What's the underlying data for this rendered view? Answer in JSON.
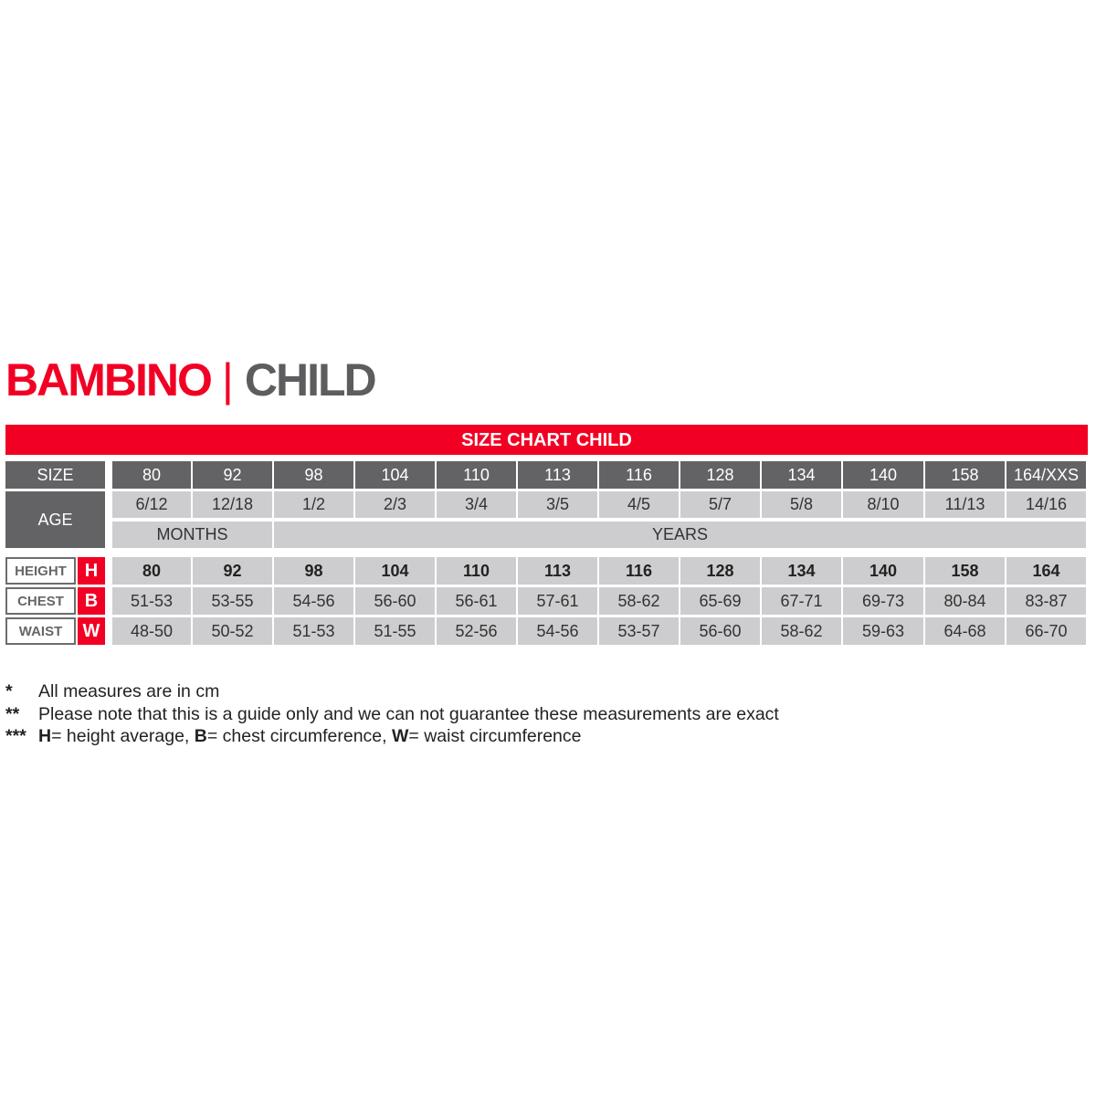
{
  "title": {
    "left": "BAMBINO",
    "separator": "|",
    "right": "CHILD"
  },
  "colors": {
    "red": "#f20024",
    "dark_gray": "#636365",
    "light_gray": "#cdcdcf"
  },
  "chart_title": "SIZE CHART CHILD",
  "size_label": "SIZE",
  "age_label": "AGE",
  "sizes": [
    "80",
    "92",
    "98",
    "104",
    "110",
    "113",
    "116",
    "128",
    "134",
    "140",
    "158",
    "164/XXS"
  ],
  "ages": [
    "6/12",
    "12/18",
    "1/2",
    "2/3",
    "3/4",
    "3/5",
    "4/5",
    "5/7",
    "5/8",
    "8/10",
    "11/13",
    "14/16"
  ],
  "age_units": [
    {
      "label": "MONTHS",
      "span": 2
    },
    {
      "label": "YEARS",
      "span": 10
    }
  ],
  "measures": [
    {
      "label": "HEIGHT",
      "letter": "H",
      "bold": true,
      "values": [
        "80",
        "92",
        "98",
        "104",
        "110",
        "113",
        "116",
        "128",
        "134",
        "140",
        "158",
        "164"
      ]
    },
    {
      "label": "CHEST",
      "letter": "B",
      "bold": false,
      "values": [
        "51-53",
        "53-55",
        "54-56",
        "56-60",
        "56-61",
        "57-61",
        "58-62",
        "65-69",
        "67-71",
        "69-73",
        "80-84",
        "83-87"
      ]
    },
    {
      "label": "WAIST",
      "letter": "W",
      "bold": false,
      "values": [
        "48-50",
        "50-52",
        "51-53",
        "51-55",
        "52-56",
        "54-56",
        "53-57",
        "56-60",
        "58-62",
        "59-63",
        "64-68",
        "66-70"
      ]
    }
  ],
  "notes": [
    {
      "stars": "*",
      "parts": [
        {
          "text": "All measures are in cm",
          "bold": false
        }
      ]
    },
    {
      "stars": "**",
      "parts": [
        {
          "text": "Please note that this is a guide only and we can not guarantee these measurements are exact",
          "bold": false
        }
      ]
    },
    {
      "stars": "***",
      "parts": [
        {
          "text": "H",
          "bold": true
        },
        {
          "text": "= height average, ",
          "bold": false
        },
        {
          "text": "B",
          "bold": true
        },
        {
          "text": "= chest circumference, ",
          "bold": false
        },
        {
          "text": "W",
          "bold": true
        },
        {
          "text": "= waist circumference",
          "bold": false
        }
      ]
    }
  ]
}
